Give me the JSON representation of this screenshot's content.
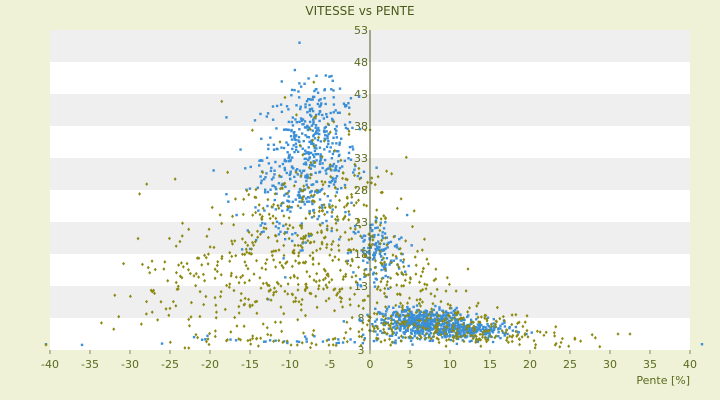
{
  "chart_data": {
    "type": "scatter",
    "title": "VITESSE vs PENTE",
    "xlabel": "Pente [%]",
    "ylabel": "",
    "xlim": [
      -40,
      40
    ],
    "ylim": [
      3,
      53
    ],
    "xticks": [
      -40,
      -35,
      -30,
      -25,
      -20,
      -15,
      -10,
      -5,
      0,
      5,
      10,
      15,
      20,
      25,
      30,
      35,
      40
    ],
    "yticks": [
      3,
      8,
      13,
      18,
      23,
      28,
      33,
      38,
      43,
      48,
      53
    ],
    "grid": "alternating horizontal bands",
    "legend": "none",
    "series": [
      {
        "color": "#3a8fd6",
        "shape": "point",
        "clusters": [
          {
            "cx": -7.5,
            "cy": 33,
            "sx": 3.0,
            "sy": 5.5,
            "n": 420
          },
          {
            "cx": -6.0,
            "cy": 41,
            "sx": 1.5,
            "sy": 2.0,
            "n": 40
          },
          {
            "cx": -11.0,
            "cy": 27,
            "sx": 3.0,
            "sy": 4.0,
            "n": 80
          },
          {
            "cx": 1.0,
            "cy": 18,
            "sx": 1.8,
            "sy": 3.0,
            "n": 140
          },
          {
            "cx": 6.5,
            "cy": 7.3,
            "sx": 2.6,
            "sy": 1.1,
            "n": 520
          },
          {
            "cx": 12.5,
            "cy": 6.0,
            "sx": 2.6,
            "sy": 0.7,
            "n": 220
          },
          {
            "cx": -6.0,
            "cy": 4.6,
            "sx": 9.0,
            "sy": 0.35,
            "n": 40
          }
        ],
        "points": [
          [
            -40.5,
            3.9
          ],
          [
            -36,
            3.8
          ],
          [
            41.5,
            3.9
          ],
          [
            -26,
            4.0
          ]
        ]
      },
      {
        "color": "#8c8a12",
        "shape": "diamond",
        "clusters": [
          {
            "cx": -12.0,
            "cy": 17,
            "sx": 6.5,
            "sy": 6.5,
            "n": 330
          },
          {
            "cx": -5.0,
            "cy": 25,
            "sx": 4.0,
            "sy": 8.0,
            "n": 200
          },
          {
            "cx": -22.0,
            "cy": 12,
            "sx": 5.0,
            "sy": 3.5,
            "n": 55
          },
          {
            "cx": 3.5,
            "cy": 12,
            "sx": 3.5,
            "sy": 5.0,
            "n": 150
          },
          {
            "cx": 10.0,
            "cy": 6.5,
            "sx": 5.5,
            "sy": 1.6,
            "n": 200
          },
          {
            "cx": 22.0,
            "cy": 4.5,
            "sx": 4.0,
            "sy": 0.6,
            "n": 25
          },
          {
            "cx": -8.0,
            "cy": 4.5,
            "sx": 10.0,
            "sy": 0.6,
            "n": 55
          }
        ],
        "points": [
          [
            -40.5,
            3.8
          ],
          [
            32.5,
            5.5
          ],
          [
            31,
            5.5
          ]
        ]
      }
    ]
  }
}
